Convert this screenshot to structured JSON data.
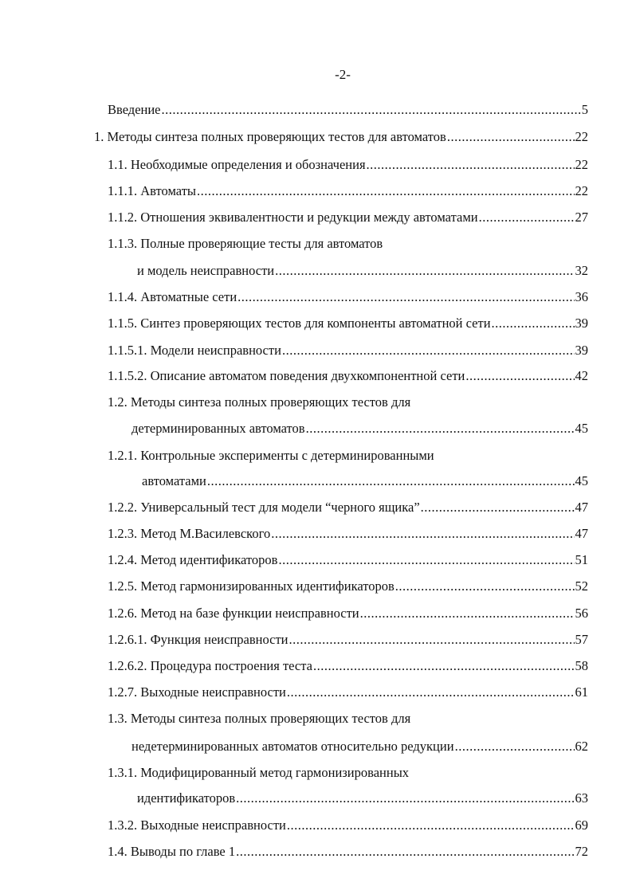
{
  "page_number": "-2-",
  "toc": [
    {
      "text": "Введение",
      "page": "5"
    },
    {
      "text": "1. Методы синтеза полных проверяющих тестов для автоматов",
      "page": "22"
    },
    {
      "text": "1.1. Необходимые определения и обозначения",
      "page": "22"
    },
    {
      "text": "1.1.1. Автоматы",
      "page": "22"
    },
    {
      "text": "1.1.2. Отношения эквивалентности и редукции между автоматами",
      "page": "27"
    },
    {
      "text": "1.1.3. Полные проверяющие тесты для автоматов"
    },
    {
      "text": "и модель неисправности",
      "page": "32"
    },
    {
      "text": "1.1.4. Автоматные сети",
      "page": "36"
    },
    {
      "text": "1.1.5. Синтез проверяющих тестов для компоненты автоматной сети",
      "page": "39"
    },
    {
      "text": "1.1.5.1. Модели неисправности",
      "page": "39"
    },
    {
      "text": "1.1.5.2. Описание автоматом поведения двухкомпонентной сети",
      "page": "42"
    },
    {
      "text": "1.2. Методы синтеза полных проверяющих тестов для"
    },
    {
      "text": "детерминированных автоматов",
      "page": "45"
    },
    {
      "text": "1.2.1. Контрольные эксперименты с детерминированными"
    },
    {
      "text": "автоматами",
      "page": "45"
    },
    {
      "text": "1.2.2. Универсальный тест для модели “черного ящика”",
      "page": "47"
    },
    {
      "text": "1.2.3. Метод М.Василевского",
      "page": "47"
    },
    {
      "text": "1.2.4. Метод идентификаторов",
      "page": "51"
    },
    {
      "text": "1.2.5. Метод гармонизированных идентификаторов",
      "page": "52"
    },
    {
      "text": "1.2.6. Метод  на базе функции неисправности",
      "page": "56"
    },
    {
      "text": "1.2.6.1. Функция неисправности",
      "page": "57"
    },
    {
      "text": "1.2.6.2. Процедура построения теста",
      "page": "58"
    },
    {
      "text": "1.2.7. Выходные  неисправности",
      "page": "61"
    },
    {
      "text": "1.3. Методы синтеза полных проверяющих тестов для"
    },
    {
      "text": "недетерминированных автоматов относительно редукции",
      "page": "62"
    },
    {
      "text": "1.3.1. Модифицированный метод гармонизированных"
    },
    {
      "text": "идентификаторов",
      "page": "63"
    },
    {
      "text": "1.3.2. Выходные  неисправности",
      "page": "69"
    },
    {
      "text": "1.4. Выводы по главе 1",
      "page": "72"
    }
  ]
}
